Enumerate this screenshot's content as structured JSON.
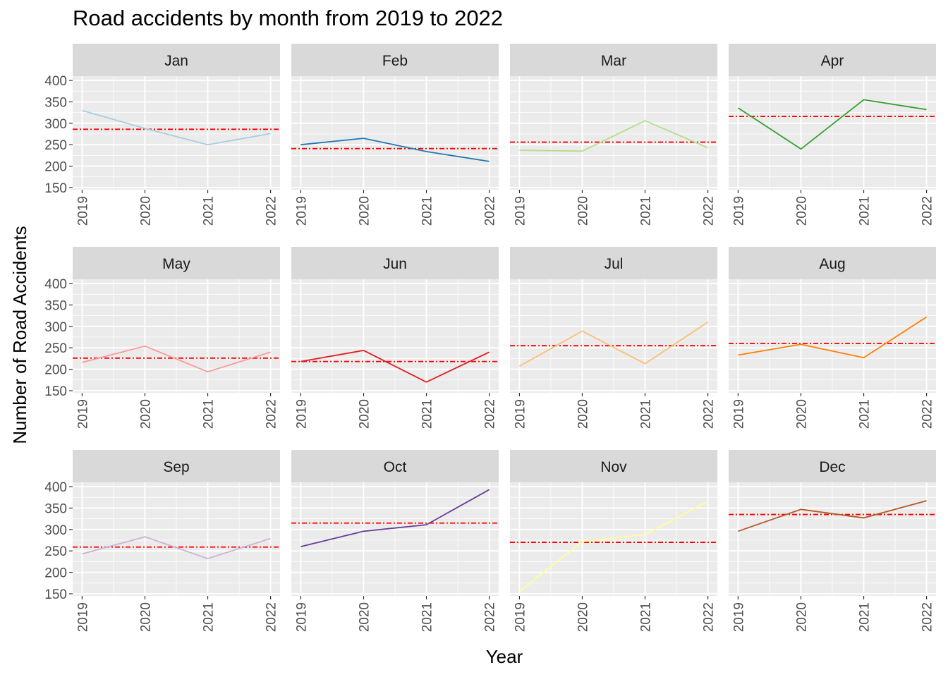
{
  "chart_data": {
    "type": "line",
    "title": "Road accidents by month from 2019 to 2022",
    "xlabel": "Year",
    "ylabel": "Number of Road Accidents",
    "x": [
      "2019",
      "2020",
      "2021",
      "2022"
    ],
    "y_ticks": [
      "150",
      "200",
      "250",
      "300",
      "350",
      "400"
    ],
    "ylim": [
      145,
      410
    ],
    "grid": true,
    "facets": [
      {
        "label": "Jan",
        "color": "#A6CEE3",
        "values": [
          330,
          288,
          250,
          276
        ],
        "mean": 286
      },
      {
        "label": "Feb",
        "color": "#1F78B4",
        "values": [
          250,
          265,
          234,
          211
        ],
        "mean": 241
      },
      {
        "label": "Mar",
        "color": "#B2DF8A",
        "values": [
          237,
          235,
          306,
          243
        ],
        "mean": 256
      },
      {
        "label": "Apr",
        "color": "#33A02C",
        "values": [
          336,
          240,
          355,
          332
        ],
        "mean": 316
      },
      {
        "label": "May",
        "color": "#FB9A99",
        "values": [
          216,
          254,
          194,
          240
        ],
        "mean": 226
      },
      {
        "label": "Jun",
        "color": "#E31A1C",
        "values": [
          218,
          244,
          170,
          240
        ],
        "mean": 218
      },
      {
        "label": "Jul",
        "color": "#FDBF6F",
        "values": [
          207,
          289,
          213,
          310
        ],
        "mean": 255
      },
      {
        "label": "Aug",
        "color": "#FF7F00",
        "values": [
          233,
          258,
          227,
          322
        ],
        "mean": 260
      },
      {
        "label": "Sep",
        "color": "#CAB2D6",
        "values": [
          243,
          283,
          232,
          279
        ],
        "mean": 259
      },
      {
        "label": "Oct",
        "color": "#6A3D9A",
        "values": [
          260,
          296,
          311,
          393
        ],
        "mean": 315
      },
      {
        "label": "Nov",
        "color": "#FFFF99",
        "values": [
          155,
          272,
          288,
          366
        ],
        "mean": 270
      },
      {
        "label": "Dec",
        "color": "#B15928",
        "values": [
          296,
          347,
          327,
          367
        ],
        "mean": 335
      }
    ],
    "mean_line_color": "#FF0000"
  }
}
